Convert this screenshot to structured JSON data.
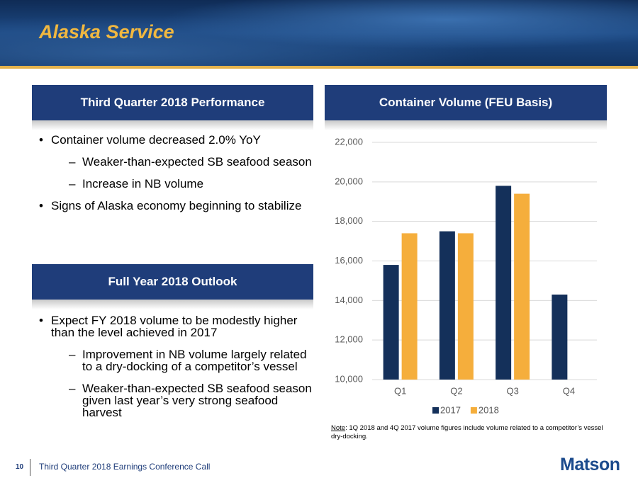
{
  "header": {
    "title": "Alaska Service"
  },
  "sections": [
    {
      "heading": "Third Quarter 2018 Performance",
      "bullets": [
        {
          "text": "Container volume decreased 2.0% YoY",
          "sub": [
            "Weaker-than-expected SB seafood season",
            "Increase in NB volume"
          ]
        },
        {
          "text": "Signs of Alaska economy beginning to stabilize"
        }
      ]
    },
    {
      "heading": "Full Year 2018 Outlook",
      "bullets": [
        {
          "text": "Expect FY 2018 volume to be modestly higher than the level achieved in 2017",
          "sub": [
            "Improvement in NB volume largely related to a dry-docking of a competitor’s vessel",
            "Weaker-than-expected SB seafood season given last year’s very strong seafood harvest"
          ]
        }
      ]
    }
  ],
  "chart_data": {
    "type": "bar",
    "title": "Container Volume (FEU Basis)",
    "categories": [
      "Q1",
      "Q2",
      "Q3",
      "Q4"
    ],
    "series": [
      {
        "name": "2017",
        "color": "#14305a",
        "values": [
          15800,
          17500,
          19800,
          14300
        ]
      },
      {
        "name": "2018",
        "color": "#f5ae3c",
        "values": [
          17400,
          17400,
          19400,
          null
        ]
      }
    ],
    "ylim": [
      10000,
      22000
    ],
    "yticks": [
      {
        "value": 10000,
        "label": "10,000"
      },
      {
        "value": 12000,
        "label": "12,000"
      },
      {
        "value": 14000,
        "label": "14,000"
      },
      {
        "value": 16000,
        "label": "16,000"
      },
      {
        "value": 18000,
        "label": "18,000"
      },
      {
        "value": 20000,
        "label": "20,000"
      },
      {
        "value": 22000,
        "label": "22,000"
      }
    ],
    "grid": true,
    "legend": "bottom",
    "note": {
      "label": "Note",
      "text": ": 1Q 2018 and 4Q 2017 volume figures include volume related to a competitor’s vessel dry-docking."
    }
  },
  "footer": {
    "page": "10",
    "event": "Third Quarter 2018 Earnings Conference Call",
    "logo": "Matson"
  }
}
